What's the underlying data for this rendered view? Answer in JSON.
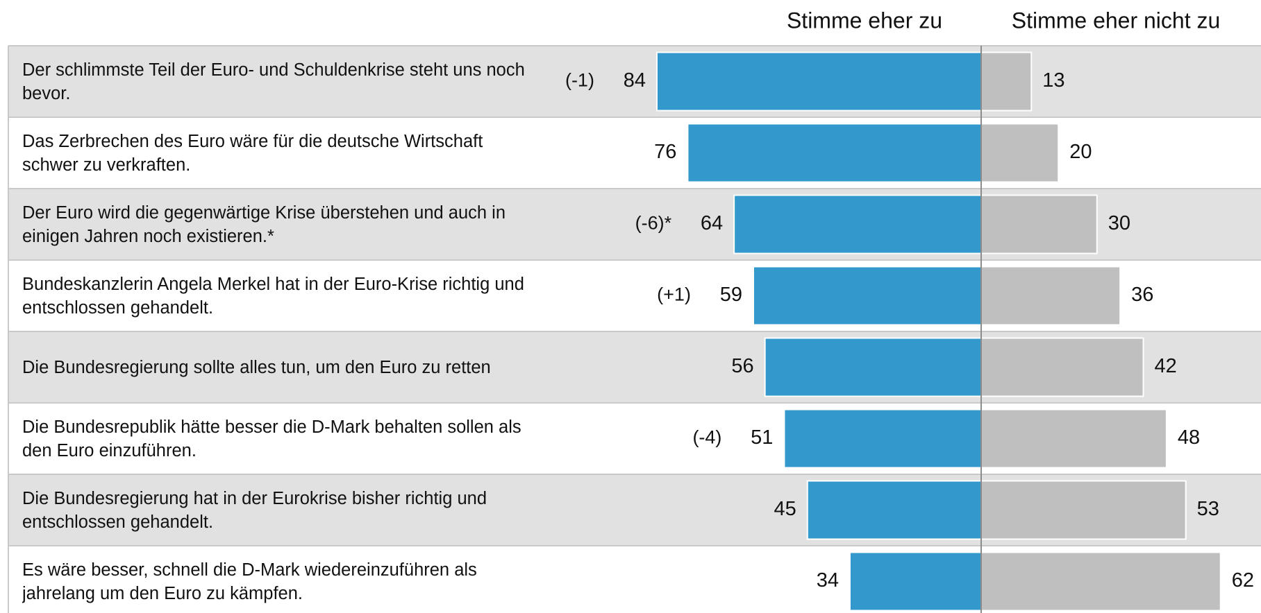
{
  "chart_data": {
    "type": "diverging_bar",
    "categories": [
      "Der schlimmste Teil der Euro- und Schuldenkrise steht uns noch bevor.",
      "Das Zerbrechen des Euro wäre für die deutsche Wirtschaft schwer zu verkraften.",
      "Der Euro wird die gegenwärtige Krise überstehen und auch in einigen Jahren noch existieren.*",
      "Bundeskanzlerin Angela Merkel hat in der Euro-Krise richtig und entschlossen gehandelt.",
      "Die Bundesregierung sollte alles tun, um den Euro zu retten",
      "Die Bundesrepublik hätte besser die D-Mark behalten sollen als den Euro einzuführen.",
      "Die Bundesregierung hat in der Eurokrise bisher richtig und entschlossen gehandelt.",
      "Es wäre besser, schnell die D-Mark wiedereinzuführen als jahrelang um den Euro zu kämpfen."
    ],
    "series": [
      {
        "name": "Stimme eher zu",
        "color": "#3399cc",
        "values": [
          84,
          76,
          64,
          59,
          56,
          51,
          45,
          34
        ]
      },
      {
        "name": "Stimme eher nicht zu",
        "color": "#bfbfbf",
        "values": [
          13,
          20,
          30,
          36,
          42,
          48,
          53,
          62
        ]
      }
    ],
    "change_labels": [
      "(-1)",
      null,
      "(-6)*",
      "(+1)",
      null,
      "(-4)",
      null,
      null
    ]
  }
}
